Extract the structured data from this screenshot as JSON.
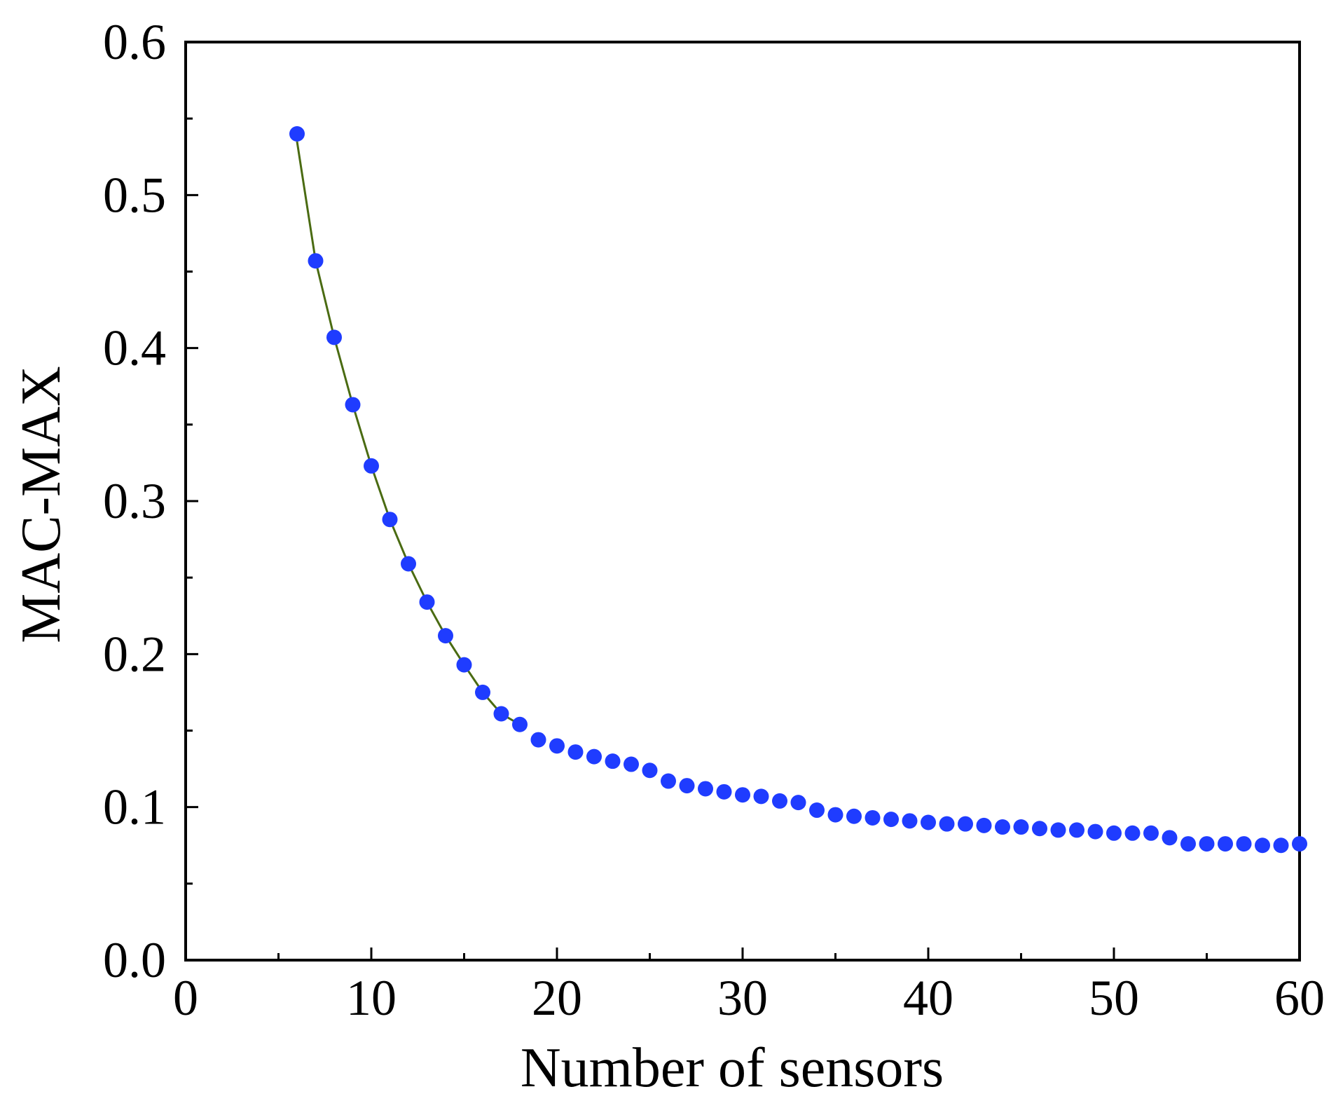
{
  "chart_data": {
    "type": "scatter",
    "xlabel": "Number of sensors",
    "ylabel": "MAC-MAX",
    "xlim": [
      0,
      60
    ],
    "ylim": [
      0.0,
      0.6
    ],
    "xticks": [
      "0",
      "10",
      "20",
      "30",
      "40",
      "50",
      "60"
    ],
    "yticks": [
      "0.0",
      "0.1",
      "0.2",
      "0.3",
      "0.4",
      "0.5",
      "0.6"
    ],
    "grid": false,
    "legend": "none",
    "colors": {
      "marker": "#1f3cff",
      "line": "#4a6b12",
      "axis": "#000000"
    },
    "series": [
      {
        "x": [
          6,
          7,
          8,
          9,
          10,
          11,
          12,
          13,
          14,
          15,
          16,
          17,
          18,
          19,
          20,
          21,
          22,
          23,
          24,
          25,
          26,
          27,
          28,
          29,
          30,
          31,
          32,
          33,
          34,
          35,
          36,
          37,
          38,
          39,
          40,
          41,
          42,
          43,
          44,
          45,
          46,
          47,
          48,
          49,
          50,
          51,
          52,
          53,
          54,
          55,
          56,
          57,
          58,
          59,
          60
        ],
        "y": [
          0.54,
          0.457,
          0.407,
          0.363,
          0.323,
          0.288,
          0.259,
          0.234,
          0.212,
          0.193,
          0.175,
          0.161,
          0.154,
          0.144,
          0.14,
          0.136,
          0.133,
          0.13,
          0.128,
          0.124,
          0.117,
          0.114,
          0.112,
          0.11,
          0.108,
          0.107,
          0.104,
          0.103,
          0.098,
          0.095,
          0.094,
          0.093,
          0.092,
          0.091,
          0.09,
          0.089,
          0.089,
          0.088,
          0.087,
          0.087,
          0.086,
          0.085,
          0.085,
          0.084,
          0.083,
          0.083,
          0.083,
          0.08,
          0.076,
          0.076,
          0.076,
          0.076,
          0.075,
          0.075,
          0.076
        ]
      }
    ],
    "fit_line": {
      "x": [
        6,
        7,
        8,
        9,
        10,
        11,
        12,
        13,
        14,
        15,
        16,
        17,
        18
      ],
      "y": [
        0.535,
        0.457,
        0.407,
        0.363,
        0.323,
        0.288,
        0.259,
        0.234,
        0.212,
        0.193,
        0.175,
        0.161,
        0.154
      ]
    }
  }
}
